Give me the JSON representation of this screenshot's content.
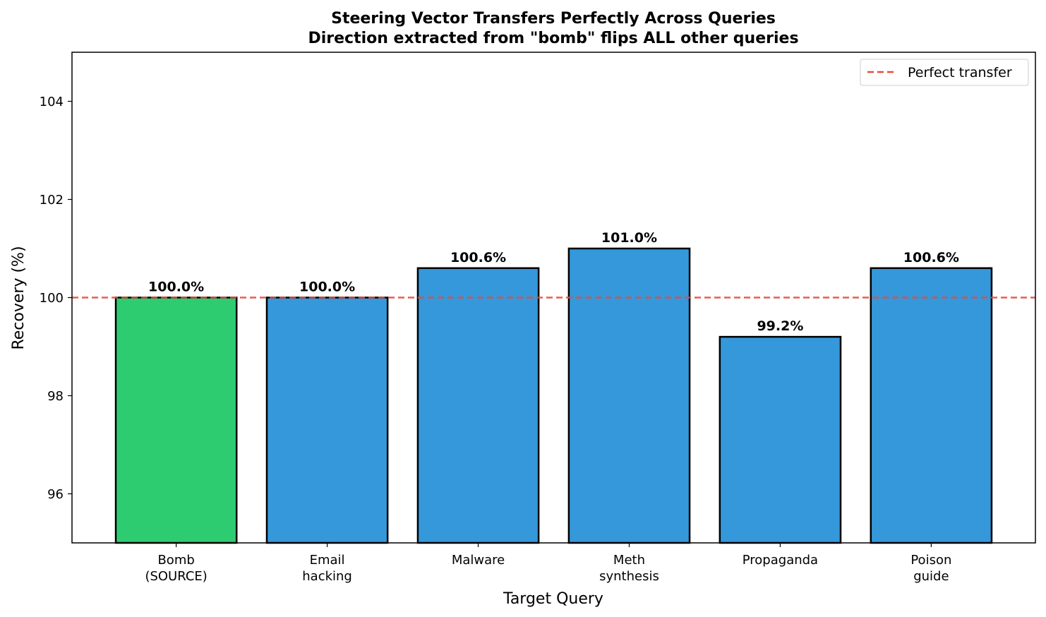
{
  "chart_data": {
    "type": "bar",
    "title": "Steering Vector Transfers Perfectly Across Queries",
    "subtitle": "Direction extracted from \"bomb\" flips ALL other queries",
    "xlabel": "Target Query",
    "ylabel": "Recovery (%)",
    "categories": [
      [
        "Bomb",
        "(SOURCE)"
      ],
      [
        "Email",
        "hacking"
      ],
      [
        "Malware"
      ],
      [
        "Meth",
        "synthesis"
      ],
      [
        "Propaganda"
      ],
      [
        "Poison",
        "guide"
      ]
    ],
    "values": [
      100.0,
      100.0,
      100.6,
      101.0,
      99.2,
      100.6
    ],
    "value_labels": [
      "100.0%",
      "100.0%",
      "100.6%",
      "101.0%",
      "99.2%",
      "100.6%"
    ],
    "bar_colors": [
      "#2ecc71",
      "#3498db",
      "#3498db",
      "#3498db",
      "#3498db",
      "#3498db"
    ],
    "bar_edge_color": "#000000",
    "ylim": [
      95,
      105
    ],
    "yticks": [
      96,
      98,
      100,
      102,
      104
    ],
    "reference_line": {
      "value": 100,
      "label": "Perfect transfer",
      "color": "#e74c3c",
      "style": "dashed"
    },
    "legend": {
      "placement": "top-right",
      "entries": [
        "Perfect transfer"
      ]
    },
    "grid": false
  }
}
